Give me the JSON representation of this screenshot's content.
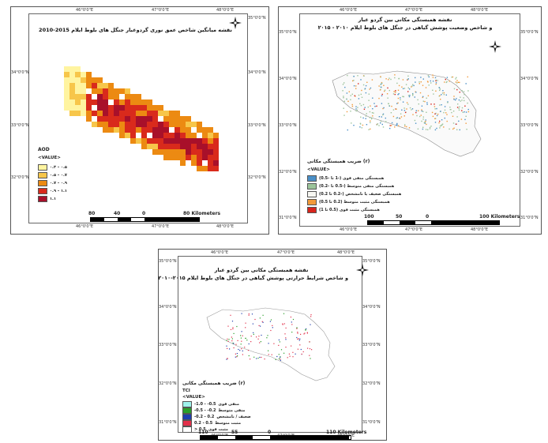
{
  "panel_aod": {
    "title": "نقشه میانگین شاخص عمق نوری گردوغبار جنگل های بلوط ایلام 2015-2010",
    "coords_top": [
      "46°0'0\"E",
      "47°0'0\"E",
      "48°0'0\"E"
    ],
    "coords_bottom": [
      "46°0'0\"E",
      "47°0'0\"E",
      "48°0'0\"E"
    ],
    "coords_left": [
      "34°0'0\"N",
      "33°0'0\"N",
      "32°0'0\"N"
    ],
    "coords_right": [
      "35°0'0\"N",
      "34°0'0\"N",
      "33°0'0\"N",
      "32°0'0\"N"
    ],
    "legend_title": "AOD",
    "legend_subtitle": "<VALUE>",
    "legend_items": [
      {
        "label": "۰.۳ – ۰.۵",
        "color": "#fff4a0"
      },
      {
        "label": "۰.۵ – ۰.۷",
        "color": "#f7c64a"
      },
      {
        "label": "۰.۷ – ۰.۹",
        "color": "#ec8a12"
      },
      {
        "label": "۰.۹ – ۱.۱",
        "color": "#d92a1c"
      },
      {
        "label": "۱.۱",
        "color": "#a8102a"
      }
    ],
    "scale_numbers": [
      "80",
      "40",
      "0",
      "80 Kilometers"
    ]
  },
  "panel_ndvi": {
    "title_line1": "نقشه همبستگی مکانی بین گردو غبار",
    "title_line2": "و شاخص وضعیت پوشش گیاهی در جنگل های بلوط ایلام ۲۰۱۰ - ۲۰۱۵",
    "coords_top": [
      "46°0'0\"E",
      "47°0'0\"E",
      "48°0'0\"E"
    ],
    "coords_bottom": [
      "46°0'0\"E",
      "47°0'0\"E",
      "48°0'0\"E"
    ],
    "coords_left": [
      "35°0'0\"N",
      "34°0'0\"N",
      "33°0'0\"N",
      "32°0'0\"N",
      "31°0'0\"N"
    ],
    "coords_right": [
      "35°0'0\"N",
      "34°0'0\"N",
      "33°0'0\"N",
      "32°0'0\"N",
      "31°0'0\"N"
    ],
    "legend_title": "(r) ضریب همبستگی مکانی",
    "legend_subtitle": "<VALUE>",
    "legend_items": [
      {
        "label": "همبستگی منفی قوی (-1 تا -0.5)",
        "color": "#4a8fc7"
      },
      {
        "label": "همبستگی منفی متوسط (-0.5 تا -0.2)",
        "color": "#9cc49a"
      },
      {
        "label": "همبستگی ضعیف یا نامشخص (-0.2 تا 0.2)",
        "color": "#f7f7f2"
      },
      {
        "label": "همبستگی مثبت متوسط (0.2 تا 0.5)",
        "color": "#f29a3a"
      },
      {
        "label": "همبستگی مثبت قوی (0.5 تا 1)",
        "color": "#d8241c"
      }
    ],
    "scale_numbers": [
      "100",
      "50",
      "0",
      "100 Kilometers"
    ]
  },
  "panel_tci": {
    "title_line1": "نقشه همبستگی مکانی بین گردو غبار",
    "title_line2": "و شاخص شرایط حرارتی پوشش گیاهی در جنگل های بلوط ایلام ۲۰۱۵-۲۰۱۰",
    "coords_top": [
      "46°0'0\"E",
      "47°0'0\"E",
      "48°0'0\"E"
    ],
    "coords_bottom": [
      "46°0'0\"E",
      "47°0'0\"E",
      "48°0'0\"E"
    ],
    "coords_left": [
      "35°0'0\"N",
      "34°0'0\"N",
      "33°0'0\"N",
      "32°0'0\"N",
      "31°0'0\"N"
    ],
    "coords_right": [
      "35°0'0\"N",
      "34°0'0\"N",
      "33°0'0\"N",
      "32°0'0\"N",
      "31°0'0\"N"
    ],
    "legend_title": "(r) ضریب همبستگی مکانی",
    "legend_var": "TCI",
    "legend_subtitle": "<VALUE>",
    "legend_items": [
      {
        "label": "-1.0 - -0.5",
        "desc": "منفی قوی",
        "color": "#9ff2ec"
      },
      {
        "label": "-0.5 - -0.2",
        "desc": "منفی متوسط",
        "color": "#2aa02a"
      },
      {
        "label": "-0.2 - 0.2",
        "desc": "ضعیف / نامشخص",
        "color": "#1f3fae"
      },
      {
        "label": "0.2 - 0.5",
        "desc": "مثبت متوسط",
        "color": "#e2304a"
      },
      {
        "label": "> 0.5",
        "desc": "مثبت قوی",
        "color": "#ffffff"
      }
    ],
    "scale_numbers": [
      "110",
      "55",
      "0",
      "110 Kilometers"
    ]
  }
}
